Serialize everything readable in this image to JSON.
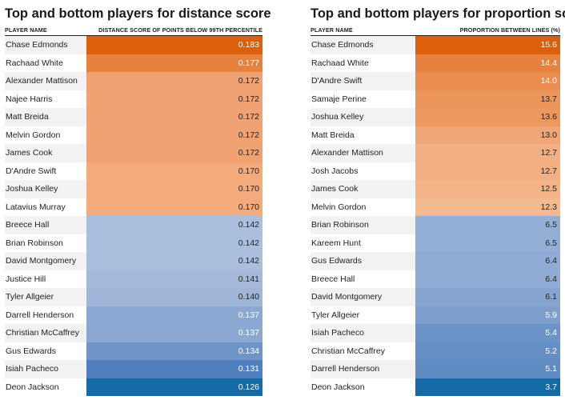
{
  "chart_data": [
    {
      "type": "table",
      "title": "Top and bottom players for distance score",
      "columns": [
        "PLAYER NAME",
        "DISTANCE SCORE OF POINTS BELOW 99TH PERCENTILE"
      ],
      "rows": [
        {
          "name": "Chase Edmonds",
          "value": "0.183",
          "bg": "#dc5f0c",
          "fg": "#ffffff"
        },
        {
          "name": "Rachaad White",
          "value": "0.177",
          "bg": "#e6813e",
          "fg": "#ffffff"
        },
        {
          "name": "Alexander Mattison",
          "value": "0.172",
          "bg": "#f0a272",
          "fg": "#222222"
        },
        {
          "name": "Najee Harris",
          "value": "0.172",
          "bg": "#f0a272",
          "fg": "#222222"
        },
        {
          "name": "Matt Breida",
          "value": "0.172",
          "bg": "#f0a272",
          "fg": "#222222"
        },
        {
          "name": "Melvin Gordon",
          "value": "0.172",
          "bg": "#f0a272",
          "fg": "#222222"
        },
        {
          "name": "James Cook",
          "value": "0.172",
          "bg": "#f0a272",
          "fg": "#222222"
        },
        {
          "name": "D'Andre Swift",
          "value": "0.170",
          "bg": "#f3ab7e",
          "fg": "#222222"
        },
        {
          "name": "Joshua Kelley",
          "value": "0.170",
          "bg": "#f3ab7e",
          "fg": "#222222"
        },
        {
          "name": "Latavius Murray",
          "value": "0.170",
          "bg": "#f3ab7e",
          "fg": "#222222"
        },
        {
          "name": "Breece Hall",
          "value": "0.142",
          "bg": "#aabfdd",
          "fg": "#222222"
        },
        {
          "name": "Brian Robinson",
          "value": "0.142",
          "bg": "#aabfdd",
          "fg": "#222222"
        },
        {
          "name": "David Montgomery",
          "value": "0.142",
          "bg": "#aabfdd",
          "fg": "#222222"
        },
        {
          "name": "Justice Hill",
          "value": "0.141",
          "bg": "#a5badb",
          "fg": "#222222"
        },
        {
          "name": "Tyler Allgeier",
          "value": "0.140",
          "bg": "#9fb6d8",
          "fg": "#222222"
        },
        {
          "name": "Darrell Henderson",
          "value": "0.137",
          "bg": "#8aa8d2",
          "fg": "#ffffff"
        },
        {
          "name": "Christian McCaffrey",
          "value": "0.137",
          "bg": "#8aa8d2",
          "fg": "#ffffff"
        },
        {
          "name": "Gus Edwards",
          "value": "0.134",
          "bg": "#6f95c8",
          "fg": "#ffffff"
        },
        {
          "name": "Isiah Pacheco",
          "value": "0.131",
          "bg": "#4f80bd",
          "fg": "#ffffff"
        },
        {
          "name": "Deon Jackson",
          "value": "0.126",
          "bg": "#156ba8",
          "fg": "#ffffff"
        }
      ]
    },
    {
      "type": "table",
      "title": "Top and bottom players for proportion score",
      "columns": [
        "PLAYER NAME",
        "PROPORTION BETWEEN LINES (%)"
      ],
      "rows": [
        {
          "name": "Chase Edmonds",
          "value": "15.6",
          "bg": "#dc5f0c",
          "fg": "#ffffff"
        },
        {
          "name": "Rachaad White",
          "value": "14.4",
          "bg": "#e6813e",
          "fg": "#ffffff"
        },
        {
          "name": "D'Andre Swift",
          "value": "14.0",
          "bg": "#ea8d4f",
          "fg": "#ffffff"
        },
        {
          "name": "Samaje Perine",
          "value": "13.7",
          "bg": "#ed965c",
          "fg": "#222222"
        },
        {
          "name": "Joshua Kelley",
          "value": "13.6",
          "bg": "#ee9860",
          "fg": "#222222"
        },
        {
          "name": "Matt Breida",
          "value": "13.0",
          "bg": "#f1a677",
          "fg": "#222222"
        },
        {
          "name": "Alexander Mattison",
          "value": "12.7",
          "bg": "#f3ae82",
          "fg": "#222222"
        },
        {
          "name": "Josh Jacobs",
          "value": "12.7",
          "bg": "#f3ae82",
          "fg": "#222222"
        },
        {
          "name": "James Cook",
          "value": "12.5",
          "bg": "#f4b287",
          "fg": "#222222"
        },
        {
          "name": "Melvin Gordon",
          "value": "12.3",
          "bg": "#f5b98f",
          "fg": "#222222"
        },
        {
          "name": "Brian Robinson",
          "value": "6.5",
          "bg": "#94afd5",
          "fg": "#222222"
        },
        {
          "name": "Kareem Hunt",
          "value": "6.5",
          "bg": "#94afd5",
          "fg": "#222222"
        },
        {
          "name": "Gus Edwards",
          "value": "6.4",
          "bg": "#90acd4",
          "fg": "#222222"
        },
        {
          "name": "Breece Hall",
          "value": "6.4",
          "bg": "#90acd4",
          "fg": "#222222"
        },
        {
          "name": "David Montgomery",
          "value": "6.1",
          "bg": "#85a4d0",
          "fg": "#222222"
        },
        {
          "name": "Tyler Allgeier",
          "value": "5.9",
          "bg": "#7e9fcd",
          "fg": "#ffffff"
        },
        {
          "name": "Isiah Pacheco",
          "value": "5.4",
          "bg": "#6c93c7",
          "fg": "#ffffff"
        },
        {
          "name": "Christian McCaffrey",
          "value": "5.2",
          "bg": "#658ec4",
          "fg": "#ffffff"
        },
        {
          "name": "Darrell Henderson",
          "value": "5.1",
          "bg": "#618bc3",
          "fg": "#ffffff"
        },
        {
          "name": "Deon Jackson",
          "value": "3.7",
          "bg": "#156ba8",
          "fg": "#ffffff"
        }
      ]
    }
  ]
}
